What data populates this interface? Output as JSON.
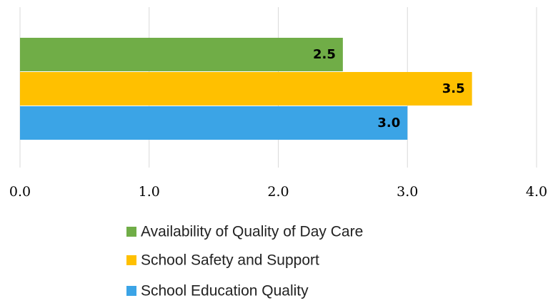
{
  "chart_data": {
    "type": "hbar",
    "categories": [
      null
    ],
    "series": [
      {
        "name": "Availability of Quality of Day Care",
        "color": "#70ad47",
        "values": [
          2.5
        ],
        "value_labels": [
          "2.5"
        ]
      },
      {
        "name": "School Safety and Support",
        "color": "#ffc000",
        "values": [
          3.5
        ],
        "value_labels": [
          "3.5"
        ]
      },
      {
        "name": "School Education Quality",
        "color": "#3ba4e6",
        "values": [
          3
        ],
        "value_labels": [
          "3.0"
        ]
      }
    ],
    "xlim": [
      0,
      4
    ],
    "xticks": [
      {
        "value": 0,
        "label": "0.0"
      },
      {
        "value": 1,
        "label": "1.0"
      },
      {
        "value": 2,
        "label": "2.0"
      },
      {
        "value": 3,
        "label": "3.0"
      },
      {
        "value": 4,
        "label": "4.0"
      }
    ],
    "grid": true,
    "legend": "bottom"
  }
}
